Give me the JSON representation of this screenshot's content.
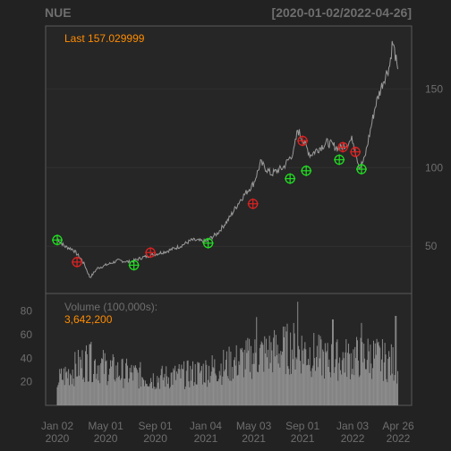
{
  "header": {
    "symbol": "NUE",
    "date_range": "[2020-01-02/2022-04-26]"
  },
  "price_panel": {
    "last_label": "Last 157.029999",
    "y_ticks": [
      "50",
      "100",
      "150"
    ]
  },
  "volume_panel": {
    "label": "Volume (100,000s):",
    "value": "3,642,200",
    "y_ticks": [
      "20",
      "40",
      "60",
      "80"
    ]
  },
  "x_axis": [
    {
      "line1": "Jan 02",
      "line2": "2020"
    },
    {
      "line1": "May 01",
      "line2": "2020"
    },
    {
      "line1": "Sep 01",
      "line2": "2020"
    },
    {
      "line1": "Jan 04",
      "line2": "2021"
    },
    {
      "line1": "May 03",
      "line2": "2021"
    },
    {
      "line1": "Sep 01",
      "line2": "2021"
    },
    {
      "line1": "Jan 03",
      "line2": "2022"
    },
    {
      "line1": "Apr 26",
      "line2": "2022"
    }
  ],
  "colors": {
    "background": "#222222",
    "panel": "#262626",
    "price_line": "#9a9a9a",
    "buy_marker": "#22dd22",
    "sell_marker": "#dd2222",
    "last_text": "#ff8c00",
    "volume_bars": "#8c8c8c"
  },
  "chart_data": {
    "type": "line",
    "price_ylim": [
      20,
      190
    ],
    "volume_ylim": [
      0,
      95
    ],
    "price_series": [
      [
        "2020-01-02",
        55
      ],
      [
        "2020-01-20",
        50
      ],
      [
        "2020-02-10",
        48
      ],
      [
        "2020-03-01",
        42
      ],
      [
        "2020-03-10",
        38
      ],
      [
        "2020-03-23",
        30
      ],
      [
        "2020-04-10",
        36
      ],
      [
        "2020-05-01",
        38
      ],
      [
        "2020-06-01",
        41
      ],
      [
        "2020-07-01",
        40
      ],
      [
        "2020-08-01",
        43
      ],
      [
        "2020-09-01",
        45
      ],
      [
        "2020-10-01",
        47
      ],
      [
        "2020-11-01",
        50
      ],
      [
        "2020-12-01",
        54
      ],
      [
        "2021-01-04",
        53
      ],
      [
        "2021-02-01",
        58
      ],
      [
        "2021-03-01",
        67
      ],
      [
        "2021-04-01",
        80
      ],
      [
        "2021-05-03",
        90
      ],
      [
        "2021-05-20",
        103
      ],
      [
        "2021-06-15",
        96
      ],
      [
        "2021-07-15",
        100
      ],
      [
        "2021-08-10",
        110
      ],
      [
        "2021-08-20",
        124
      ],
      [
        "2021-09-01",
        118
      ],
      [
        "2021-09-20",
        108
      ],
      [
        "2021-10-10",
        112
      ],
      [
        "2021-11-01",
        116
      ],
      [
        "2021-12-01",
        112
      ],
      [
        "2022-01-03",
        118
      ],
      [
        "2022-01-20",
        100
      ],
      [
        "2022-02-01",
        105
      ],
      [
        "2022-03-01",
        140
      ],
      [
        "2022-03-20",
        155
      ],
      [
        "2022-04-05",
        165
      ],
      [
        "2022-04-12",
        180
      ],
      [
        "2022-04-20",
        170
      ],
      [
        "2022-04-26",
        157
      ]
    ],
    "buy_signals": [
      [
        "2020-01-02",
        54
      ],
      [
        "2020-07-10",
        38
      ],
      [
        "2021-01-10",
        52
      ],
      [
        "2021-08-01",
        93
      ],
      [
        "2021-09-10",
        98
      ],
      [
        "2021-12-01",
        105
      ],
      [
        "2022-01-25",
        99
      ]
    ],
    "sell_signals": [
      [
        "2020-02-20",
        40
      ],
      [
        "2020-08-20",
        46
      ],
      [
        "2021-05-01",
        77
      ],
      [
        "2021-09-01",
        117
      ],
      [
        "2021-12-10",
        113
      ],
      [
        "2022-01-10",
        110
      ]
    ],
    "volume_profile": [
      [
        "2020-01-02",
        22
      ],
      [
        "2020-03-15",
        40
      ],
      [
        "2020-06-01",
        30
      ],
      [
        "2020-09-01",
        24
      ],
      [
        "2020-12-01",
        28
      ],
      [
        "2021-03-01",
        36
      ],
      [
        "2021-05-15",
        45
      ],
      [
        "2021-08-15",
        52
      ],
      [
        "2021-11-01",
        40
      ],
      [
        "2022-02-15",
        44
      ],
      [
        "2022-04-26",
        36
      ]
    ],
    "volume_spikes": [
      [
        "2020-03-23",
        52
      ],
      [
        "2021-05-10",
        75
      ],
      [
        "2021-08-20",
        88
      ],
      [
        "2021-11-15",
        73
      ],
      [
        "2022-01-25",
        70
      ],
      [
        "2022-04-20",
        76
      ]
    ]
  }
}
